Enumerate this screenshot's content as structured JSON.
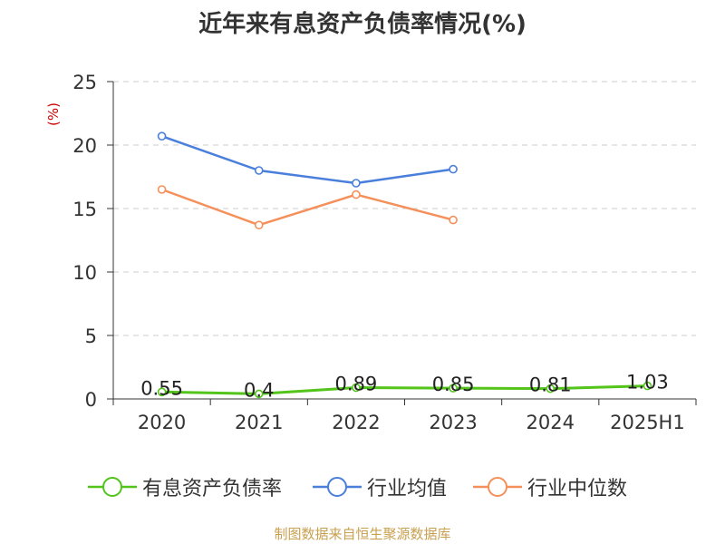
{
  "chart_data": {
    "type": "line",
    "title": "近年来有息资产负债率情况(%)",
    "y_unit": "(%)",
    "categories": [
      "2020",
      "2021",
      "2022",
      "2023",
      "2024",
      "2025H1"
    ],
    "ylim": [
      0,
      25
    ],
    "yticks": [
      0,
      5,
      10,
      15,
      20,
      25
    ],
    "grid": "horizontal-dashed",
    "legend_position": "bottom",
    "series": [
      {
        "name": "有息资产负债率",
        "color": "#52c41a",
        "values": [
          0.55,
          0.4,
          0.89,
          0.85,
          0.81,
          1.03
        ],
        "labels": [
          "0.55",
          "0.4",
          "0.89",
          "0.85",
          "0.81",
          "1.03"
        ]
      },
      {
        "name": "行业均值",
        "color": "#4a7fdb",
        "values": [
          20.7,
          18.0,
          17.0,
          18.1,
          null,
          null
        ]
      },
      {
        "name": "行业中位数",
        "color": "#f5905a",
        "values": [
          16.5,
          13.7,
          16.1,
          14.1,
          null,
          null
        ]
      }
    ]
  },
  "source": "制图数据来自恒生聚源数据库"
}
